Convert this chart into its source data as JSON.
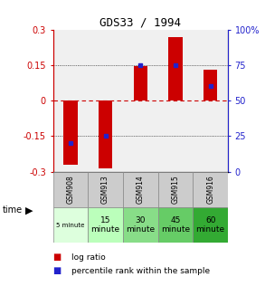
{
  "title": "GDS33 / 1994",
  "samples": [
    "GSM908",
    "GSM913",
    "GSM914",
    "GSM915",
    "GSM916"
  ],
  "time_labels_row1": [
    "",
    "15",
    "30",
    "45",
    "60"
  ],
  "time_labels_row2": [
    "5 minute",
    "minute",
    "minute",
    "minute",
    "minute"
  ],
  "time_colors": [
    "#ddffdd",
    "#bbffbb",
    "#88dd88",
    "#66cc66",
    "#33aa33"
  ],
  "log_ratios": [
    -0.27,
    -0.285,
    0.145,
    0.27,
    0.13
  ],
  "percentile_ranks_pct": [
    20,
    25,
    75,
    75,
    60
  ],
  "ylim": [
    -0.3,
    0.3
  ],
  "yticks_left": [
    -0.3,
    -0.15,
    0,
    0.15,
    0.3
  ],
  "yticks_right": [
    0,
    25,
    50,
    75,
    100
  ],
  "bar_color": "#cc0000",
  "dot_color": "#2222cc",
  "bg_color": "#ffffff",
  "plot_bg": "#f0f0f0",
  "zero_line_color": "#cc0000",
  "left_axis_color": "#cc0000",
  "right_axis_color": "#2222cc",
  "gray_cell": "#cccccc",
  "cell_edge": "#888888"
}
